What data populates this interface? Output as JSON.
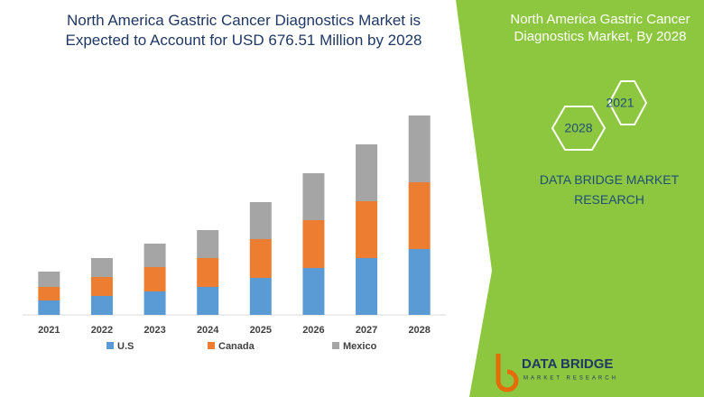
{
  "chart_data": {
    "type": "stacked-bar",
    "title": "North America Gastric Cancer Diagnostics Market is Expected to Account for USD 676.51 Million by 2028",
    "categories": [
      "2021",
      "2022",
      "2023",
      "2024",
      "2025",
      "2026",
      "2027",
      "2028"
    ],
    "series": [
      {
        "name": "U.S",
        "color": "#5b9bd5",
        "values": [
          16,
          21,
          26,
          31,
          41,
          52,
          63,
          73
        ]
      },
      {
        "name": "Canada",
        "color": "#ed7d31",
        "values": [
          15,
          21,
          27,
          32,
          43,
          53,
          63,
          74
        ]
      },
      {
        "name": "Mexico",
        "color": "#a5a5a5",
        "values": [
          17,
          21,
          26,
          31,
          41,
          52,
          63,
          74
        ]
      }
    ],
    "ylim": [
      0,
      230
    ]
  },
  "panel": {
    "title": "North America Gastric Cancer Diagnostics Market, By 2028",
    "hex_labels": [
      "2021",
      "2028"
    ],
    "brand": "DATA BRIDGE MARKET RESEARCH"
  },
  "logo": {
    "name": "DATA BRIDGE",
    "tagline": "MARKET RESEARCH"
  }
}
